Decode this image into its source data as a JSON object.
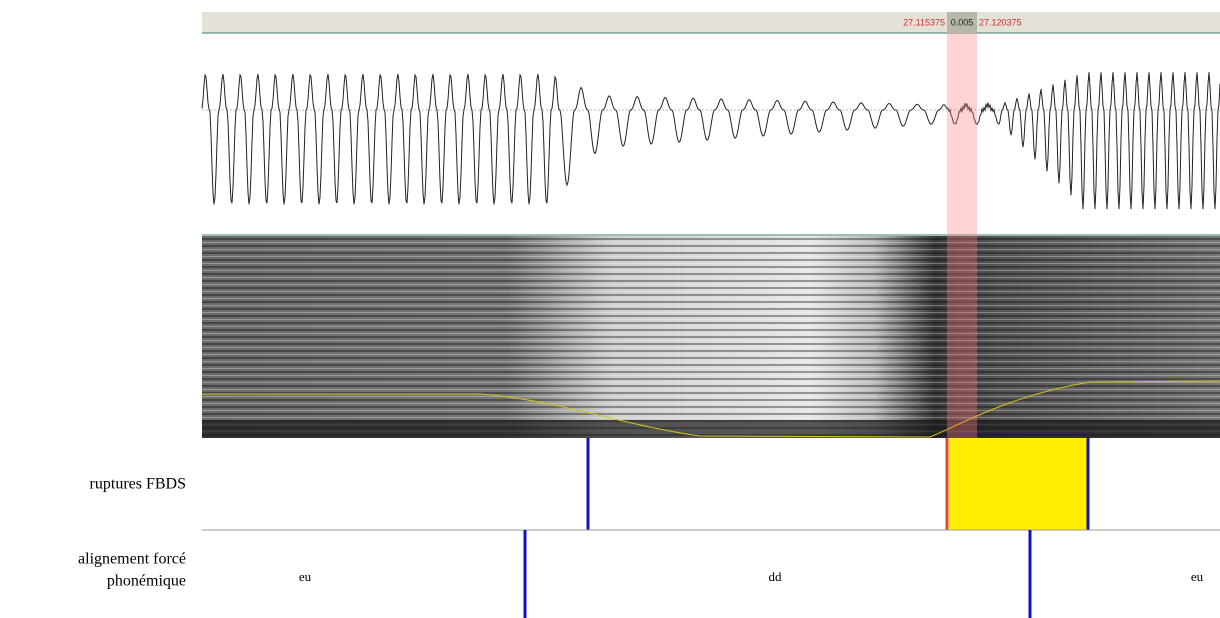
{
  "selection": {
    "start": "27.115375",
    "duration": "0.005",
    "end": "27.120375"
  },
  "tiers": [
    {
      "name": "ruptures FBDS"
    },
    {
      "name_lines": [
        "alignement forcé",
        "phonémique"
      ],
      "intervals": [
        "eu",
        "dd",
        "eu"
      ]
    }
  ]
}
